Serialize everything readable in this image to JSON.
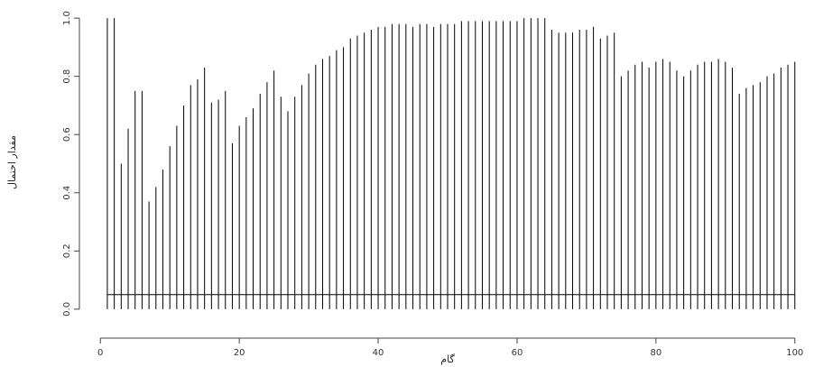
{
  "chart_data": {
    "type": "stem",
    "x_label": "گام",
    "y_label": "مقدار احتمال",
    "x": [
      1,
      2,
      3,
      4,
      5,
      6,
      7,
      8,
      9,
      10,
      11,
      12,
      13,
      14,
      15,
      16,
      17,
      18,
      19,
      20,
      21,
      22,
      23,
      24,
      25,
      26,
      27,
      28,
      29,
      30,
      31,
      32,
      33,
      34,
      35,
      36,
      37,
      38,
      39,
      40,
      41,
      42,
      43,
      44,
      45,
      46,
      47,
      48,
      49,
      50,
      51,
      52,
      53,
      54,
      55,
      56,
      57,
      58,
      59,
      60,
      61,
      62,
      63,
      64,
      65,
      66,
      67,
      68,
      69,
      70,
      71,
      72,
      73,
      74,
      75,
      76,
      77,
      78,
      79,
      80,
      81,
      82,
      83,
      84,
      85,
      86,
      87,
      88,
      89,
      90,
      91,
      92,
      93,
      94,
      95,
      96,
      97,
      98,
      99,
      100
    ],
    "values": [
      1.0,
      1.0,
      0.5,
      0.62,
      0.75,
      0.75,
      0.37,
      0.42,
      0.48,
      0.56,
      0.63,
      0.7,
      0.77,
      0.79,
      0.83,
      0.71,
      0.72,
      0.75,
      0.57,
      0.63,
      0.66,
      0.69,
      0.74,
      0.78,
      0.82,
      0.73,
      0.68,
      0.73,
      0.77,
      0.81,
      0.84,
      0.86,
      0.87,
      0.89,
      0.9,
      0.93,
      0.94,
      0.95,
      0.96,
      0.97,
      0.97,
      0.98,
      0.98,
      0.98,
      0.97,
      0.98,
      0.98,
      0.97,
      0.98,
      0.98,
      0.98,
      0.99,
      0.99,
      0.99,
      0.99,
      0.99,
      0.99,
      0.99,
      0.99,
      0.99,
      1.0,
      1.0,
      1.0,
      1.0,
      0.96,
      0.95,
      0.95,
      0.95,
      0.96,
      0.96,
      0.97,
      0.93,
      0.94,
      0.95,
      0.8,
      0.82,
      0.84,
      0.85,
      0.83,
      0.85,
      0.86,
      0.85,
      0.82,
      0.8,
      0.82,
      0.84,
      0.85,
      0.85,
      0.86,
      0.85,
      0.83,
      0.74,
      0.76,
      0.77,
      0.78,
      0.8,
      0.81,
      0.83,
      0.84,
      0.85
    ],
    "hline": 0.05,
    "color": "#000000",
    "xlim": [
      -2.5,
      102.5
    ],
    "xticks": [
      0,
      20,
      40,
      60,
      80,
      100
    ],
    "ylim": [
      -0.05,
      1.05
    ],
    "yticks": [
      {
        "value": 0,
        "label": "0.0"
      },
      0.2,
      0.4,
      0.6,
      0.8,
      {
        "value": 1,
        "label": "1.0"
      }
    ]
  }
}
